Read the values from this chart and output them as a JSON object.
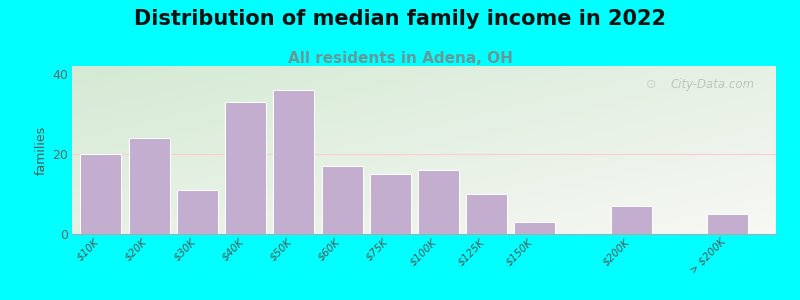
{
  "title": "Distribution of median family income in 2022",
  "subtitle": "All residents in Adena, OH",
  "ylabel": "families",
  "background_color": "#00FFFF",
  "plot_bg_color_topleft": "#d4ead4",
  "plot_bg_color_bottomright": "#f5f5f0",
  "bar_color": "#c4aed0",
  "bar_edge_color": "#ffffff",
  "categories": [
    "$10K",
    "$20K",
    "$30K",
    "$40K",
    "$50K",
    "$60K",
    "$75K",
    "$100K",
    "$125K",
    "$150K",
    "$200K",
    "> $200K"
  ],
  "values": [
    20,
    24,
    11,
    33,
    36,
    17,
    15,
    16,
    10,
    3,
    7,
    5
  ],
  "x_positions": [
    0,
    1,
    2,
    3,
    4,
    5,
    6,
    7,
    8,
    9,
    11,
    13
  ],
  "ylim": [
    0,
    42
  ],
  "xlim": [
    -0.6,
    14.0
  ],
  "yticks": [
    0,
    20,
    40
  ],
  "title_fontsize": 15,
  "subtitle_fontsize": 11,
  "subtitle_color": "#669999",
  "ylabel_fontsize": 9,
  "watermark_text": "City-Data.com",
  "hline_y": 20,
  "hline_color": "#ffcccc",
  "bar_width": 0.85
}
